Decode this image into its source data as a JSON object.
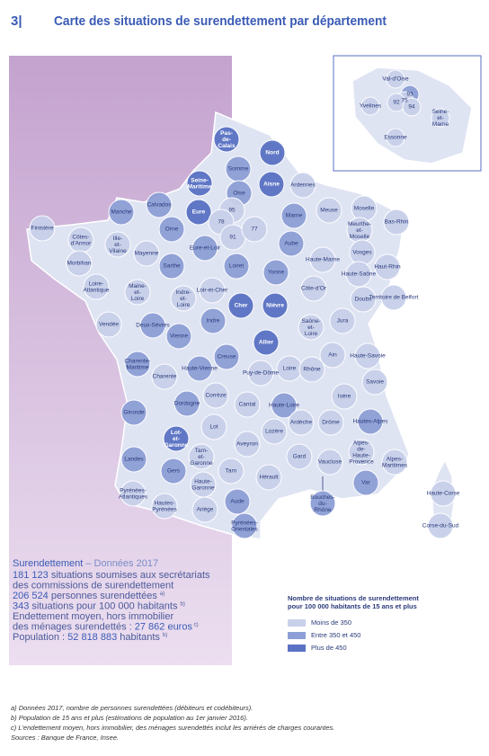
{
  "header": {
    "number": "3|",
    "title": "Carte des situations de surendettement par département"
  },
  "legend": {
    "title": [
      "Nombre de situations de surendettement",
      "pour 100 000 habitants de 15 ans et plus"
    ],
    "items": [
      {
        "label": "Moins de 350",
        "color": "#c8d0ea"
      },
      {
        "label": "Entre 350 et 450",
        "color": "#8d9fd6"
      },
      {
        "label": "Plus de 450",
        "color": "#5a72c4"
      }
    ]
  },
  "departments": [
    {
      "label": "Pas-de-Calais",
      "level": 2
    },
    {
      "label": "Nord",
      "level": 2
    },
    {
      "label": "Somme",
      "level": 1
    },
    {
      "label": "Seine-Maritime",
      "level": 2
    },
    {
      "label": "Aisne",
      "level": 2
    },
    {
      "label": "Ardennes",
      "level": 0
    },
    {
      "label": "Calvados",
      "level": 1
    },
    {
      "label": "Manche",
      "level": 1
    },
    {
      "label": "Oise",
      "level": 1
    },
    {
      "label": "Eure",
      "level": 2
    },
    {
      "label": "95",
      "level": 0
    },
    {
      "label": "Marne",
      "level": 1
    },
    {
      "label": "Meuse",
      "level": 0
    },
    {
      "label": "Moselle",
      "level": 0
    },
    {
      "label": "Bas-Rhin",
      "level": 0
    },
    {
      "label": "Finistère",
      "level": 0
    },
    {
      "label": "Côtes-d'Armor",
      "level": 0
    },
    {
      "label": "Ille-et-Vilaine",
      "level": 0
    },
    {
      "label": "Orne",
      "level": 1
    },
    {
      "label": "78",
      "level": 0
    },
    {
      "label": "91",
      "level": 0
    },
    {
      "label": "77",
      "level": 0
    },
    {
      "label": "Meurthe-et-Moselle",
      "level": 0
    },
    {
      "label": "Eure-et-Loir",
      "level": 1
    },
    {
      "label": "Aube",
      "level": 1
    },
    {
      "label": "Morbihan",
      "level": 0
    },
    {
      "label": "Mayenne",
      "level": 0
    },
    {
      "label": "Haute-Marne",
      "level": 0
    },
    {
      "label": "Vosges",
      "level": 0
    },
    {
      "label": "Haut-Rhin",
      "level": 0
    },
    {
      "label": "Sarthe",
      "level": 1
    },
    {
      "label": "Loiret",
      "level": 1
    },
    {
      "label": "Yonne",
      "level": 1
    },
    {
      "label": "Haute-Saône",
      "level": 0
    },
    {
      "label": "Loire-Atlantique",
      "level": 0
    },
    {
      "label": "Maine-et-Loire",
      "level": 0
    },
    {
      "label": "Loir-et-Cher",
      "level": 0
    },
    {
      "label": "Indre-et-Loire",
      "level": 0
    },
    {
      "label": "Côte-d'Or",
      "level": 0
    },
    {
      "label": "Doubs",
      "level": 0
    },
    {
      "label": "Territoire de Belfort",
      "level": 0
    },
    {
      "label": "Cher",
      "level": 2
    },
    {
      "label": "Nièvre",
      "level": 2
    },
    {
      "label": "Vendée",
      "level": 0
    },
    {
      "label": "Deux-Sèvres",
      "level": 1
    },
    {
      "label": "Indre",
      "level": 1
    },
    {
      "label": "Saône-et-Loire",
      "level": 0
    },
    {
      "label": "Jura",
      "level": 0
    },
    {
      "label": "Vienne",
      "level": 1
    },
    {
      "label": "Allier",
      "level": 2
    },
    {
      "label": "Ain",
      "level": 0
    },
    {
      "label": "Haute-Savoie",
      "level": 0
    },
    {
      "label": "Charente-Maritime",
      "level": 1
    },
    {
      "label": "Creuse",
      "level": 1
    },
    {
      "label": "Haute-Vienne",
      "level": 1
    },
    {
      "label": "Puy-de-Dôme",
      "level": 0
    },
    {
      "label": "Loire",
      "level": 0
    },
    {
      "label": "Rhône",
      "level": 0
    },
    {
      "label": "Savoie",
      "level": 0
    },
    {
      "label": "Charente",
      "level": 0
    },
    {
      "label": "Corrèze",
      "level": 0
    },
    {
      "label": "Isère",
      "level": 0
    },
    {
      "label": "Dordogne",
      "level": 1
    },
    {
      "label": "Cantal",
      "level": 0
    },
    {
      "label": "Haute-Loire",
      "level": 1
    },
    {
      "label": "Gironde",
      "level": 1
    },
    {
      "label": "Ardèche",
      "level": 0
    },
    {
      "label": "Drôme",
      "level": 0
    },
    {
      "label": "Hautes-Alpes",
      "level": 1
    },
    {
      "label": "Lot",
      "level": 0
    },
    {
      "label": "Lozère",
      "level": 0
    },
    {
      "label": "Lot-et-Garonne",
      "level": 2
    },
    {
      "label": "Aveyron",
      "level": 0
    },
    {
      "label": "Landes",
      "level": 1
    },
    {
      "label": "Alpes-de-Haute-Provence",
      "level": 0
    },
    {
      "label": "Tarn-et-Garonne",
      "level": 0
    },
    {
      "label": "Gard",
      "level": 0
    },
    {
      "label": "Vaucluse",
      "level": 0
    },
    {
      "label": "Alpes-Maritimes",
      "level": 0
    },
    {
      "label": "Gers",
      "level": 1
    },
    {
      "label": "Tarn",
      "level": 0
    },
    {
      "label": "Hérault",
      "level": 0
    },
    {
      "label": "Haute-Garonne",
      "level": 0
    },
    {
      "label": "Var",
      "level": 1
    },
    {
      "label": "Pyrénées-Atlantiques",
      "level": 0
    },
    {
      "label": "Hautes-Pyrénées",
      "level": 0
    },
    {
      "label": "Aude",
      "level": 1
    },
    {
      "label": "Ariège",
      "level": 0
    },
    {
      "label": "Bouches-du-Rhône",
      "level": 1
    },
    {
      "label": "Haute-Corse",
      "level": 0
    },
    {
      "label": "Corse-du-Sud",
      "level": 0
    },
    {
      "label": "Pyrénées-Orientales",
      "level": 1
    }
  ],
  "inset": {
    "departments": [
      {
        "label": "Val-d'Oise",
        "level": 0
      },
      {
        "label": "Yvelines",
        "level": 0
      },
      {
        "label": "93",
        "level": 1
      },
      {
        "label": "75",
        "level": 0
      },
      {
        "label": "92",
        "level": 0
      },
      {
        "label": "94",
        "level": 0
      },
      {
        "label": "Seine-et-Marne",
        "level": 0
      },
      {
        "label": "Essonne",
        "level": 0
      }
    ]
  },
  "stats": {
    "title": "Surendettement",
    "subtitle": " – Données 2017",
    "lines": [
      [
        {
          "text": "181 123",
          "style": "num"
        },
        {
          "text": " situations soumises aux secrétariats",
          "style": "plain"
        }
      ],
      [
        {
          "text": "des commissions de surendettement",
          "style": "plain"
        }
      ],
      [
        {
          "text": "206 524",
          "style": "num"
        },
        {
          "text": " personnes surendettées ",
          "style": "plain"
        },
        {
          "text": "a)",
          "style": "sup"
        }
      ],
      [
        {
          "text": "343",
          "style": "num"
        },
        {
          "text": " situations pour 100 000 habitants ",
          "style": "plain"
        },
        {
          "text": "b)",
          "style": "sup"
        }
      ],
      [
        {
          "text": "Endettement moyen, hors immobilier",
          "style": "plain"
        }
      ],
      [
        {
          "text": "des ménages surendettés : ",
          "style": "plain"
        },
        {
          "text": "27 862 euros",
          "style": "num"
        },
        {
          "text": " c)",
          "style": "sup"
        }
      ],
      [
        {
          "text": "Population : ",
          "style": "plain"
        },
        {
          "text": "52 818 883",
          "style": "num"
        },
        {
          "text": " habitants ",
          "style": "plain"
        },
        {
          "text": "b)",
          "style": "sup"
        }
      ]
    ]
  },
  "footnotes": [
    "a) Données 2017, nombre de personnes surendettées (débiteurs et codébiteurs).",
    "b) Population de 15 ans et plus (estimations de population au 1er janvier 2016).",
    "c) L'endettement moyen, hors immobilier, des ménages surendettés inclut les arriérés de charges courantes.",
    "Sources : Banque de France, Insee."
  ]
}
